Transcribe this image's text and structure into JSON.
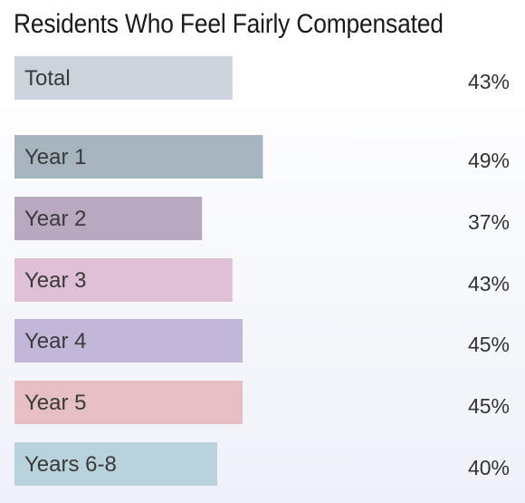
{
  "chart_data": {
    "type": "bar",
    "orientation": "horizontal",
    "title": "Residents Who Feel Fairly Compensated",
    "categories": [
      "Total",
      "Year 1",
      "Year 2",
      "Year 3",
      "Year 4",
      "Year 5",
      "Years 6-8"
    ],
    "values": [
      43,
      49,
      37,
      43,
      45,
      45,
      40
    ],
    "value_suffix": "%",
    "colors": [
      "#cdd3da",
      "#a6b5bd",
      "#b8a9c0",
      "#ddbfd6",
      "#c2b7d8",
      "#e6bfc4",
      "#b8d3dc"
    ],
    "xlabel": "",
    "ylabel": "",
    "grid": false,
    "legend": "none"
  }
}
